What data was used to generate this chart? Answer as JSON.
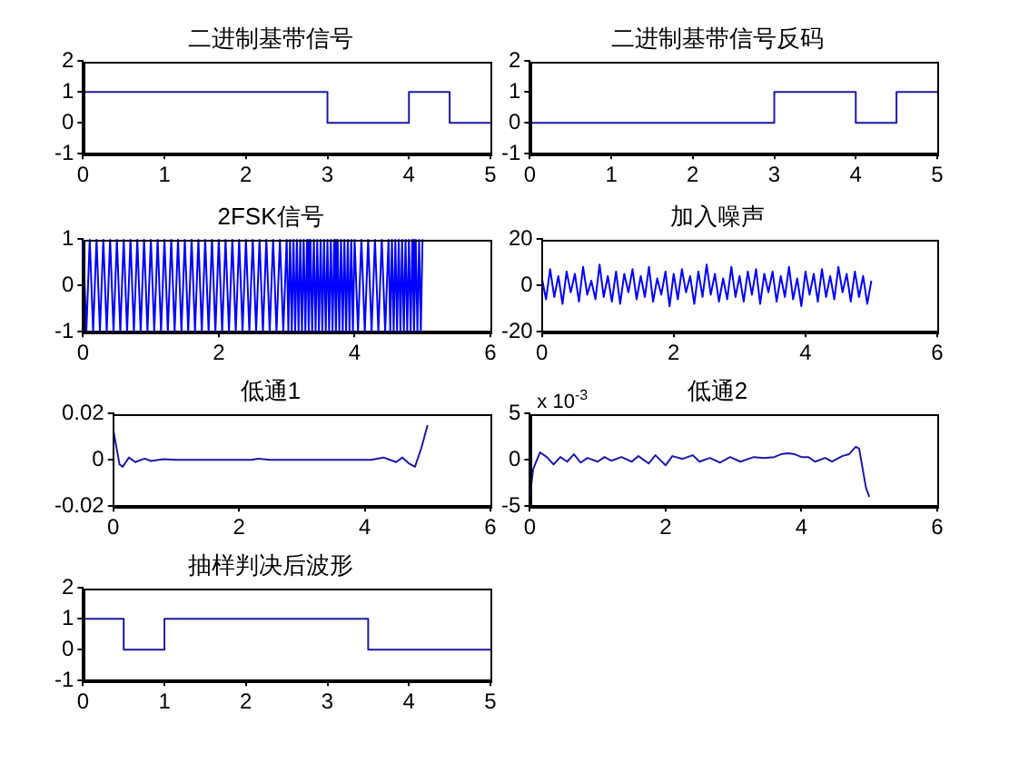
{
  "chart_data": [
    {
      "type": "step",
      "title": "二进制基带信号",
      "x": [
        0,
        3,
        4,
        4.5,
        5
      ],
      "values": [
        1,
        0,
        1,
        0,
        0
      ],
      "color": "#1a1aa6",
      "xlim": [
        0,
        5
      ],
      "xticks": [
        0,
        1,
        2,
        3,
        4,
        5
      ],
      "ylim": [
        -1,
        2
      ],
      "yticks": [
        -1,
        0,
        1,
        2
      ]
    },
    {
      "type": "step",
      "title": "二进制基带信号反码",
      "x": [
        0,
        3,
        4,
        4.5,
        5
      ],
      "values": [
        0,
        1,
        0,
        1,
        1
      ],
      "color": "#1a1aa6",
      "xlim": [
        0,
        5
      ],
      "xticks": [
        0,
        1,
        2,
        3,
        4,
        5
      ],
      "ylim": [
        -1,
        2
      ],
      "yticks": [
        -1,
        0,
        1,
        2
      ]
    },
    {
      "type": "line",
      "title": "2FSK信号",
      "x": [
        0,
        0.05,
        0.1,
        0.15,
        0.2,
        0.25,
        0.3,
        0.35,
        0.4,
        0.45,
        0.5,
        0.55,
        0.6,
        0.65,
        0.7,
        0.75,
        0.8,
        0.85,
        0.9,
        0.95,
        1,
        1.05,
        1.1,
        1.15,
        1.2,
        1.25,
        1.3,
        1.35,
        1.4,
        1.45,
        1.5,
        1.55,
        1.6,
        1.65,
        1.7,
        1.75,
        1.8,
        1.85,
        1.9,
        1.95,
        2,
        2.05,
        2.1,
        2.15,
        2.2,
        2.25,
        2.3,
        2.35,
        2.4,
        2.45,
        2.5,
        2.55,
        2.6,
        2.65,
        2.7,
        2.75,
        2.8,
        2.85,
        2.9,
        2.95,
        3,
        3.025,
        3.05,
        3.075,
        3.1,
        3.125,
        3.15,
        3.175,
        3.2,
        3.225,
        3.25,
        3.275,
        3.3,
        3.325,
        3.35,
        3.375,
        3.4,
        3.425,
        3.45,
        3.475,
        3.5,
        3.525,
        3.55,
        3.575,
        3.6,
        3.625,
        3.65,
        3.675,
        3.7,
        3.725,
        3.75,
        3.775,
        3.8,
        3.825,
        3.85,
        3.875,
        3.9,
        3.925,
        3.95,
        3.975,
        4,
        4.05,
        4.1,
        4.15,
        4.2,
        4.25,
        4.3,
        4.35,
        4.4,
        4.45,
        4.5,
        4.525,
        4.55,
        4.575,
        4.6,
        4.625,
        4.65,
        4.675,
        4.7,
        4.725,
        4.75,
        4.775,
        4.8,
        4.825,
        4.85,
        4.875,
        4.9,
        4.925,
        4.95,
        4.975,
        5
      ],
      "values": [
        1,
        -1,
        1,
        -1,
        1,
        -1,
        1,
        -1,
        1,
        -1,
        1,
        -1,
        1,
        -1,
        1,
        -1,
        1,
        -1,
        1,
        -1,
        1,
        -1,
        1,
        -1,
        1,
        -1,
        1,
        -1,
        1,
        -1,
        1,
        -1,
        1,
        -1,
        1,
        -1,
        1,
        -1,
        1,
        -1,
        1,
        -1,
        1,
        -1,
        1,
        -1,
        1,
        -1,
        1,
        -1,
        1,
        -1,
        1,
        -1,
        1,
        -1,
        1,
        -1,
        1,
        -1,
        1,
        -1,
        1,
        -1,
        1,
        -1,
        1,
        -1,
        1,
        -1,
        1,
        -1,
        1,
        -1,
        1,
        -1,
        1,
        -1,
        1,
        -1,
        1,
        -1,
        1,
        -1,
        1,
        -1,
        1,
        -1,
        1,
        -1,
        1,
        -1,
        1,
        -1,
        1,
        -1,
        1,
        -1,
        1,
        -1,
        1,
        -1,
        1,
        -1,
        1,
        -1,
        1,
        -1,
        1,
        -1,
        1,
        -1,
        1,
        -1,
        1,
        -1,
        1,
        -1,
        1,
        -1,
        1,
        -1,
        1,
        -1,
        1,
        -1,
        1,
        -1,
        1,
        -1,
        1
      ],
      "color": "#0000ff",
      "xlim": [
        0,
        6
      ],
      "xticks": [
        0,
        2,
        4,
        6
      ],
      "ylim": [
        -1,
        1
      ],
      "yticks": [
        -1,
        0,
        1
      ]
    },
    {
      "type": "line",
      "title": "加入噪声",
      "x": [
        0,
        0.0625,
        0.125,
        0.1875,
        0.25,
        0.3125,
        0.375,
        0.4375,
        0.5,
        0.5625,
        0.625,
        0.6875,
        0.75,
        0.8125,
        0.875,
        0.9375,
        1,
        1.0625,
        1.125,
        1.1875,
        1.25,
        1.3125,
        1.375,
        1.4375,
        1.5,
        1.5625,
        1.625,
        1.6875,
        1.75,
        1.8125,
        1.875,
        1.9375,
        2,
        2.0625,
        2.125,
        2.1875,
        2.25,
        2.3125,
        2.375,
        2.4375,
        2.5,
        2.5625,
        2.625,
        2.6875,
        2.75,
        2.8125,
        2.875,
        2.9375,
        3,
        3.0625,
        3.125,
        3.1875,
        3.25,
        3.3125,
        3.375,
        3.4375,
        3.5,
        3.5625,
        3.625,
        3.6875,
        3.75,
        3.8125,
        3.875,
        3.9375,
        4,
        4.0625,
        4.125,
        4.1875,
        4.25,
        4.3125,
        4.375,
        4.4375,
        4.5,
        4.5625,
        4.625,
        4.6875,
        4.75,
        4.8125,
        4.875,
        4.9375,
        5
      ],
      "values": [
        3,
        -6,
        7,
        -5,
        4,
        -8,
        6,
        -3,
        5,
        -7,
        8,
        -4,
        2,
        -6,
        9,
        -5,
        4,
        -7,
        6,
        -8,
        5,
        -3,
        7,
        -6,
        4,
        -5,
        8,
        -7,
        3,
        -4,
        6,
        -9,
        5,
        -6,
        7,
        -3,
        4,
        -8,
        6,
        -5,
        9,
        -4,
        5,
        -7,
        3,
        -6,
        8,
        -5,
        4,
        -7,
        6,
        -4,
        7,
        -8,
        5,
        -3,
        6,
        -7,
        4,
        -5,
        8,
        -6,
        3,
        -9,
        6,
        -4,
        5,
        -7,
        7,
        -5,
        4,
        -6,
        8,
        -3,
        5,
        -7,
        6,
        -5,
        4,
        -8,
        2
      ],
      "color": "#0000ff",
      "xlim": [
        0,
        6
      ],
      "xticks": [
        0,
        2,
        4,
        6
      ],
      "ylim": [
        -20,
        20
      ],
      "yticks": [
        -20,
        0,
        20
      ]
    },
    {
      "type": "line",
      "title": "低通1",
      "x": [
        0,
        0.1,
        0.15,
        0.25,
        0.35,
        0.5,
        0.6,
        0.8,
        1,
        2.2,
        2.3,
        2.5,
        4.1,
        4.3,
        4.5,
        4.6,
        4.7,
        4.8,
        4.9,
        5
      ],
      "values": [
        0.013,
        -0.002,
        -0.003,
        0.001,
        -0.001,
        0.0005,
        -0.0005,
        0.0003,
        0,
        0,
        0.0005,
        0,
        0,
        0.001,
        -0.001,
        0.001,
        -0.0015,
        -0.003,
        0.005,
        0.015
      ],
      "color": "#1a1aa6",
      "xlim": [
        0,
        6
      ],
      "xticks": [
        0,
        2,
        4,
        6
      ],
      "ylim": [
        -0.02,
        0.02
      ],
      "yticks": [
        -0.02,
        0,
        0.02
      ]
    },
    {
      "type": "line",
      "title": "低通2",
      "annotations": [
        "x 10$^{-3}$"
      ],
      "x": [
        0,
        0.05,
        0.15,
        0.25,
        0.35,
        0.45,
        0.55,
        0.65,
        0.75,
        0.85,
        1,
        1.1,
        1.2,
        1.35,
        1.5,
        1.6,
        1.75,
        1.85,
        2,
        2.1,
        2.25,
        2.4,
        2.5,
        2.65,
        2.8,
        2.95,
        3.1,
        3.3,
        3.45,
        3.6,
        3.7,
        3.8,
        3.9,
        4,
        4.1,
        4.2,
        4.35,
        4.45,
        4.6,
        4.7,
        4.8,
        4.85,
        4.95,
        5
      ],
      "values": [
        -4,
        -1,
        0.8,
        0.3,
        -0.5,
        0.3,
        -0.2,
        0.6,
        -0.3,
        0.2,
        -0.2,
        0.3,
        -0.1,
        0.3,
        -0.2,
        0.4,
        -0.4,
        0.5,
        -0.6,
        0.4,
        0.1,
        0.5,
        -0.2,
        0.2,
        -0.3,
        0.3,
        -0.2,
        0.3,
        0.2,
        0.3,
        0.6,
        0.7,
        0.6,
        0.3,
        0.3,
        -0.2,
        0.2,
        -0.2,
        0.4,
        0.6,
        1.4,
        1.2,
        -3,
        -4
      ],
      "color": "#1a1aa6",
      "xlim": [
        0,
        6
      ],
      "xticks": [
        0,
        2,
        4,
        6
      ],
      "ylim": [
        -5,
        5
      ],
      "yticks": [
        -5,
        0,
        5
      ]
    },
    {
      "type": "step",
      "title": "抽样判决后波形",
      "x": [
        0,
        0.5,
        1,
        3.5,
        5
      ],
      "values": [
        1,
        0,
        1,
        0,
        0
      ],
      "color": "#1a1aa6",
      "xlim": [
        0,
        5
      ],
      "xticks": [
        0,
        1,
        2,
        3,
        4,
        5
      ],
      "ylim": [
        -1,
        2
      ],
      "yticks": [
        -1,
        0,
        1,
        2
      ]
    }
  ]
}
